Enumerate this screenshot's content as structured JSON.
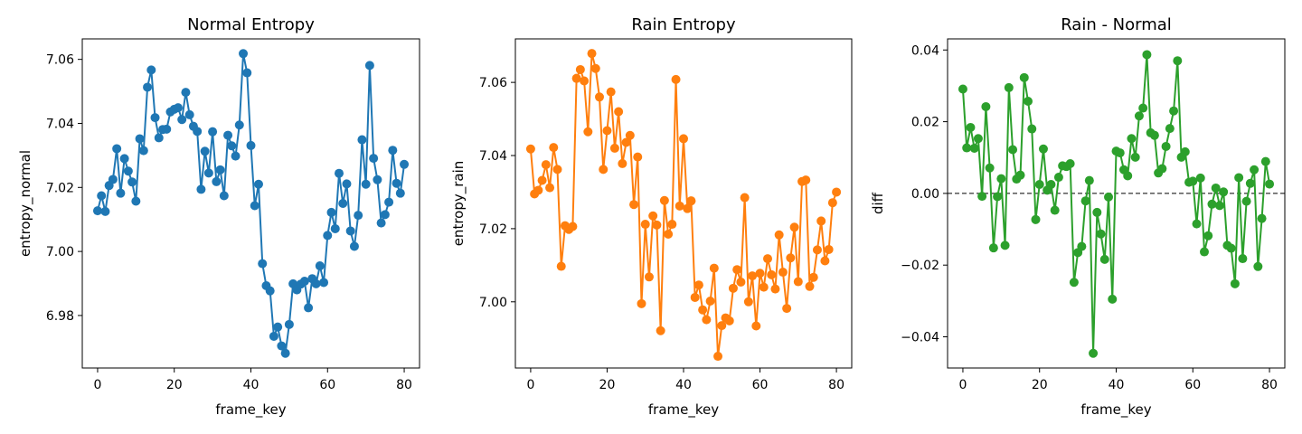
{
  "chart_data": [
    {
      "type": "line",
      "title": "Normal Entropy",
      "xlabel": "frame_key",
      "ylabel": "entropy_normal",
      "xlim": [
        -4,
        84
      ],
      "ylim": [
        6.9636,
        7.0664
      ],
      "xticks": [
        0,
        20,
        40,
        60,
        80
      ],
      "yticks": [
        6.98,
        7.0,
        7.02,
        7.04,
        7.06
      ],
      "ytick_labels": [
        "6.98",
        "7.00",
        "7.02",
        "7.04",
        "7.06"
      ],
      "grid": false,
      "series": [
        {
          "color": "#1f77b4",
          "marker": "circle",
          "x": [
            0,
            1,
            2,
            3,
            4,
            5,
            6,
            7,
            8,
            9,
            10,
            11,
            12,
            13,
            14,
            15,
            16,
            17,
            18,
            19,
            20,
            21,
            22,
            23,
            24,
            25,
            26,
            27,
            28,
            29,
            30,
            31,
            32,
            33,
            34,
            35,
            36,
            37,
            38,
            39,
            40,
            41,
            42,
            43,
            44,
            45,
            46,
            47,
            48,
            49,
            50,
            51,
            52,
            53,
            54,
            55,
            56,
            57,
            58,
            59,
            60,
            61,
            62,
            63,
            64,
            65,
            66,
            67,
            68,
            69,
            70,
            71,
            72,
            73,
            74,
            75,
            76,
            77,
            78,
            79,
            80
          ],
          "values": [
            7.0127,
            7.0174,
            7.0125,
            7.0206,
            7.0225,
            7.0321,
            7.0182,
            7.029,
            7.0251,
            7.0217,
            7.0157,
            7.0352,
            7.0315,
            7.0513,
            7.0567,
            7.0418,
            7.0355,
            7.0381,
            7.0382,
            7.0436,
            7.0444,
            7.0449,
            7.0412,
            7.0497,
            7.0427,
            7.0391,
            7.0375,
            7.0194,
            7.0313,
            7.0245,
            7.0374,
            7.0218,
            7.0255,
            7.0174,
            7.0363,
            7.033,
            7.0298,
            7.0395,
            7.0618,
            7.0558,
            7.0331,
            7.0143,
            7.021,
            6.9962,
            6.9893,
            6.9877,
            6.9735,
            6.9764,
            6.9705,
            6.9682,
            6.9772,
            6.9899,
            6.988,
            6.9898,
            6.9907,
            6.9824,
            6.9915,
            6.9899,
            6.9955,
            6.9903,
            7.005,
            7.0122,
            7.0071,
            7.0244,
            7.015,
            7.0211,
            7.0064,
            7.0016,
            7.0113,
            7.0349,
            7.021,
            7.0581,
            7.0291,
            7.0224,
            7.0089,
            7.0115,
            7.0154,
            7.0316,
            7.0213,
            7.0182,
            7.0272
          ]
        }
      ]
    },
    {
      "type": "line",
      "title": "Rain Entropy",
      "xlabel": "frame_key",
      "ylabel": "entropy_rain",
      "xlim": [
        -4,
        84
      ],
      "ylim": [
        6.9819,
        7.0719
      ],
      "xticks": [
        0,
        20,
        40,
        60,
        80
      ],
      "yticks": [
        7.0,
        7.02,
        7.04,
        7.06
      ],
      "ytick_labels": [
        "7.00",
        "7.02",
        "7.04",
        "7.06"
      ],
      "grid": false,
      "series": [
        {
          "color": "#ff7f0e",
          "marker": "circle",
          "x": [
            0,
            1,
            2,
            3,
            4,
            5,
            6,
            7,
            8,
            9,
            10,
            11,
            12,
            13,
            14,
            15,
            16,
            17,
            18,
            19,
            20,
            21,
            22,
            23,
            24,
            25,
            26,
            27,
            28,
            29,
            30,
            31,
            32,
            33,
            34,
            35,
            36,
            37,
            38,
            39,
            40,
            41,
            42,
            43,
            44,
            45,
            46,
            47,
            48,
            49,
            50,
            51,
            52,
            53,
            54,
            55,
            56,
            57,
            58,
            59,
            60,
            61,
            62,
            63,
            64,
            65,
            66,
            67,
            68,
            69,
            70,
            71,
            72,
            73,
            74,
            75,
            76,
            77,
            78,
            79,
            80
          ],
          "values": [
            7.0418,
            7.0295,
            7.0305,
            7.0332,
            7.0375,
            7.0312,
            7.0422,
            7.0362,
            7.0097,
            7.0208,
            7.0198,
            7.0206,
            7.0611,
            7.0635,
            7.0604,
            7.0465,
            7.0679,
            7.0638,
            7.056,
            7.0362,
            7.0468,
            7.0574,
            7.042,
            7.052,
            7.0378,
            7.0436,
            7.0455,
            7.0266,
            7.0396,
            6.9995,
            7.0212,
            7.0068,
            7.0235,
            7.021,
            6.9921,
            7.0277,
            7.0185,
            7.0212,
            7.0608,
            7.0262,
            7.0446,
            7.0255,
            7.0276,
            7.0012,
            7.0046,
            6.9978,
            6.9951,
            7.0002,
            7.0092,
            6.9851,
            6.9935,
            6.9956,
            6.9948,
            7.0037,
            7.0088,
            7.0054,
            7.0285,
            7.0,
            7.0071,
            6.9934,
            7.0078,
            7.004,
            7.0118,
            7.0074,
            7.0035,
            7.0183,
            7.0081,
            6.9982,
            7.012,
            7.0204,
            7.0055,
            7.0329,
            7.0333,
            7.0042,
            7.0067,
            7.0142,
            7.0221,
            7.0112,
            7.0143,
            7.0271,
            7.03
          ]
        }
      ]
    },
    {
      "type": "line",
      "title": "Rain - Normal",
      "xlabel": "frame_key",
      "ylabel": "diff",
      "xlim": [
        -4,
        84
      ],
      "ylim": [
        -0.0487,
        0.0431
      ],
      "xticks": [
        0,
        20,
        40,
        60,
        80
      ],
      "yticks": [
        -0.04,
        -0.02,
        0.0,
        0.02,
        0.04
      ],
      "ytick_labels": [
        "−0.04",
        "−0.02",
        "0.00",
        "0.02",
        "0.04"
      ],
      "grid": false,
      "reference_line": {
        "y": 0,
        "style": "dashed",
        "color": "#000000"
      },
      "series": [
        {
          "color": "#2ca02c",
          "marker": "circle",
          "x": [
            0,
            1,
            2,
            3,
            4,
            5,
            6,
            7,
            8,
            9,
            10,
            11,
            12,
            13,
            14,
            15,
            16,
            17,
            18,
            19,
            20,
            21,
            22,
            23,
            24,
            25,
            26,
            27,
            28,
            29,
            30,
            31,
            32,
            33,
            34,
            35,
            36,
            37,
            38,
            39,
            40,
            41,
            42,
            43,
            44,
            45,
            46,
            47,
            48,
            49,
            50,
            51,
            52,
            53,
            54,
            55,
            56,
            57,
            58,
            59,
            60,
            61,
            62,
            63,
            64,
            65,
            66,
            67,
            68,
            69,
            70,
            71,
            72,
            73,
            74,
            75,
            76,
            77,
            78,
            79,
            80
          ],
          "values": [
            0.0291,
            0.0127,
            0.0184,
            0.0126,
            0.0153,
            -0.0008,
            0.0242,
            0.0071,
            -0.0152,
            -0.0009,
            0.0041,
            -0.0145,
            0.0295,
            0.0122,
            0.004,
            0.0051,
            0.0323,
            0.0257,
            0.018,
            -0.0073,
            0.0025,
            0.0124,
            0.0009,
            0.0025,
            -0.0047,
            0.0045,
            0.0077,
            0.0075,
            0.0083,
            -0.0248,
            -0.0165,
            -0.0148,
            -0.0021,
            0.0036,
            -0.0446,
            -0.0053,
            -0.0113,
            -0.0184,
            -0.001,
            -0.0295,
            0.0118,
            0.0113,
            0.0066,
            0.0049,
            0.0153,
            0.0101,
            0.0216,
            0.0238,
            0.0387,
            0.0169,
            0.0162,
            0.0057,
            0.0069,
            0.0131,
            0.0181,
            0.023,
            0.037,
            0.0101,
            0.0116,
            0.0031,
            0.0034,
            -0.0085,
            0.0043,
            -0.0163,
            -0.0118,
            -0.003,
            0.0015,
            -0.0034,
            0.0004,
            -0.0145,
            -0.0153,
            -0.0252,
            0.0044,
            -0.0182,
            -0.0022,
            0.0028,
            0.0066,
            -0.0204,
            -0.007,
            0.0089,
            0.0026
          ]
        }
      ]
    }
  ]
}
